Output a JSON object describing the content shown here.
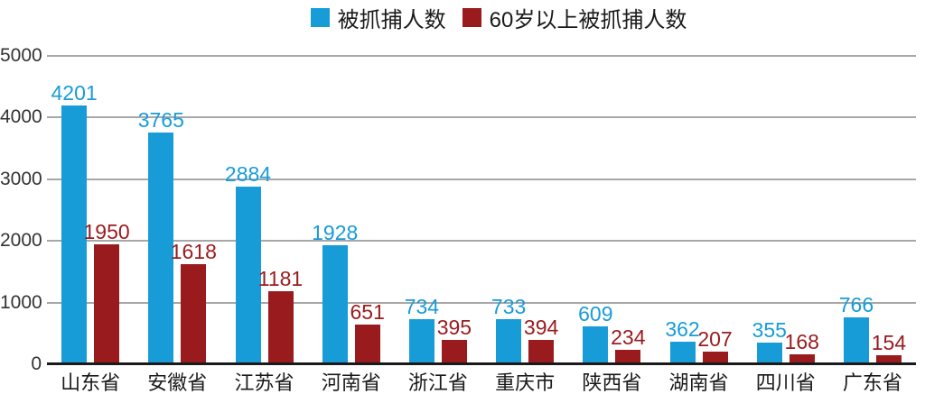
{
  "chart_data": {
    "type": "bar",
    "title": "",
    "xlabel": "",
    "ylabel": "",
    "categories": [
      "山东省",
      "安徽省",
      "江苏省",
      "河南省",
      "浙江省",
      "重庆市",
      "陕西省",
      "湖南省",
      "四川省",
      "广东省"
    ],
    "series": [
      {
        "name": "被抓捕人数",
        "color": "#189CD8",
        "values": [
          4201,
          3765,
          2884,
          1928,
          734,
          733,
          609,
          362,
          355,
          766
        ]
      },
      {
        "name": "60岁以上被抓捕人数",
        "color": "#9A1B1E",
        "values": [
          1950,
          1618,
          1181,
          651,
          395,
          394,
          234,
          207,
          168,
          154
        ]
      }
    ],
    "ylim": [
      0,
      5000
    ],
    "yticks": [
      0,
      1000,
      2000,
      3000,
      4000,
      5000
    ],
    "grid": true,
    "data_labels": true,
    "legend_position": "top"
  },
  "colors": {
    "background": "#ffffff",
    "gridline": "#a8a8a8",
    "axis_line": "#1a1a1a",
    "y_label": "#333333",
    "x_label": "#1a1a1a",
    "series_blue": "#189CD8",
    "series_red": "#9A1B1E"
  }
}
